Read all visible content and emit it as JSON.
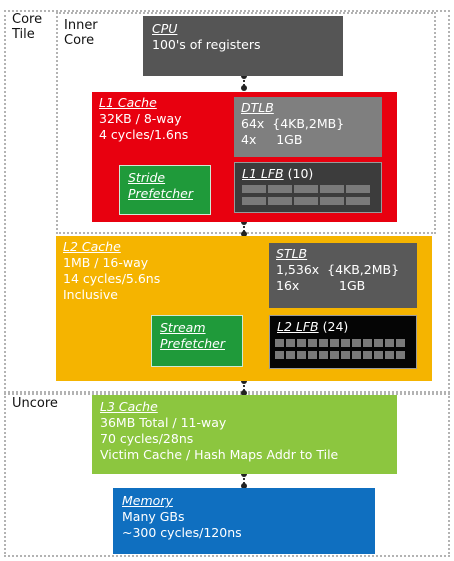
{
  "labels": {
    "core_tile": "Core\nTile",
    "inner_core": "Inner\nCore",
    "uncore": "Uncore"
  },
  "cpu": {
    "title": "CPU",
    "line1": "100's of registers"
  },
  "l1": {
    "title": "L1 Cache",
    "line1": "32KB / 8-way",
    "line2": "4 cycles/1.6ns"
  },
  "dtlb": {
    "title": "DTLB",
    "line1": "64x  {4KB,2MB}",
    "line2": "4x     1GB"
  },
  "stride": {
    "line1": "Stride",
    "line2": "Prefetcher"
  },
  "l1lfb": {
    "title": "L1 LFB",
    "count": "(10)",
    "cells": 10
  },
  "l2": {
    "title": "L2 Cache",
    "line1": "1MB / 16-way",
    "line2": "14 cycles/5.6ns",
    "line3": "Inclusive"
  },
  "stlb": {
    "title": "STLB",
    "line1": "1,536x  {4KB,2MB}",
    "line2": "16x          1GB"
  },
  "stream": {
    "line1": "Stream",
    "line2": "Prefetcher"
  },
  "l2lfb": {
    "title": "L2 LFB",
    "count": "(24)",
    "cells": 24
  },
  "l3": {
    "title": "L3 Cache",
    "line1": "36MB Total / 11-way",
    "line2": "70 cycles/28ns",
    "line3": "Victim Cache / Hash Maps Addr to Tile"
  },
  "memory": {
    "title": "Memory",
    "line1": "Many GBs",
    "line2": "~300 cycles/120ns"
  },
  "colors": {
    "cpu": "#555555",
    "l1": "#e8000f",
    "l1_inner": "#7f7f7f",
    "l1lfb": "#3c3c3c",
    "prefetch": "#1f9a3a",
    "l2": "#f5b400",
    "l2_inner": "#595959",
    "l2lfb": "#050505",
    "l3": "#8cc63f",
    "memory": "#0f6fc0"
  }
}
